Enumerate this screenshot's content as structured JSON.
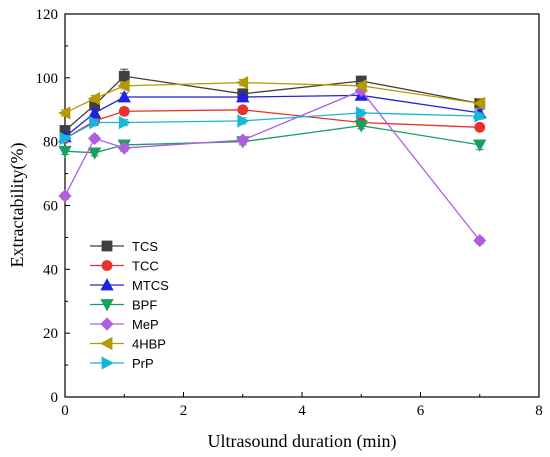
{
  "chart_data": {
    "type": "line",
    "title": "",
    "xlabel": "Ultrasound duration (min)",
    "ylabel": "Extractability(%)",
    "xlim": [
      0,
      8
    ],
    "ylim": [
      0,
      120
    ],
    "xticks": [
      0,
      2,
      4,
      6,
      8
    ],
    "yticks": [
      0,
      20,
      40,
      60,
      80,
      100,
      120
    ],
    "grid": false,
    "legend_position": "bottom-left",
    "series": [
      {
        "name": "TCS",
        "color": "#404040",
        "marker": "square",
        "x": [
          0,
          0.5,
          1,
          3,
          5,
          7
        ],
        "y": [
          83.5,
          91.5,
          100.5,
          95,
          99,
          92
        ],
        "err": [
          1.2,
          1.2,
          2.2,
          1.0,
          1.0,
          1.0
        ]
      },
      {
        "name": "TCC",
        "color": "#e8312a",
        "marker": "circle",
        "x": [
          0,
          0.5,
          1,
          3,
          5,
          7
        ],
        "y": [
          81,
          86.5,
          89.5,
          90,
          86,
          84.5
        ],
        "err": [
          1.0,
          1.0,
          1.2,
          1.0,
          1.0,
          1.0
        ]
      },
      {
        "name": "MTCS",
        "color": "#2121e0",
        "marker": "triangle-up",
        "x": [
          0,
          0.5,
          1,
          3,
          5,
          7
        ],
        "y": [
          81.5,
          89,
          94,
          94,
          94.5,
          89
        ],
        "err": [
          1.0,
          1.0,
          1.2,
          1.0,
          1.0,
          1.0
        ]
      },
      {
        "name": "BPF",
        "color": "#19a061",
        "marker": "triangle-down",
        "x": [
          0,
          0.5,
          1,
          3,
          5,
          7
        ],
        "y": [
          77,
          76.5,
          79,
          80,
          85,
          79
        ],
        "err": [
          1.0,
          1.0,
          1.0,
          1.0,
          1.0,
          1.5
        ]
      },
      {
        "name": "MeP",
        "color": "#b05de0",
        "marker": "diamond",
        "x": [
          0,
          0.5,
          1,
          3,
          5,
          7
        ],
        "y": [
          63,
          81,
          78,
          80.5,
          96,
          49
        ],
        "err": [
          1.0,
          1.0,
          1.0,
          1.0,
          1.0,
          1.0
        ]
      },
      {
        "name": "4HBP",
        "color": "#b39a00",
        "marker": "triangle-left",
        "x": [
          0,
          0.5,
          1,
          3,
          5,
          7
        ],
        "y": [
          89,
          93.5,
          97.5,
          98.5,
          97.5,
          92
        ],
        "err": [
          1.0,
          1.0,
          1.0,
          1.0,
          1.0,
          1.5
        ]
      },
      {
        "name": "PrP",
        "color": "#18b6d6",
        "marker": "triangle-right",
        "x": [
          0,
          0.5,
          1,
          3,
          5,
          7
        ],
        "y": [
          81,
          86,
          86,
          86.5,
          89,
          88
        ],
        "err": [
          1.0,
          1.0,
          1.0,
          1.0,
          1.0,
          1.0
        ]
      }
    ]
  }
}
